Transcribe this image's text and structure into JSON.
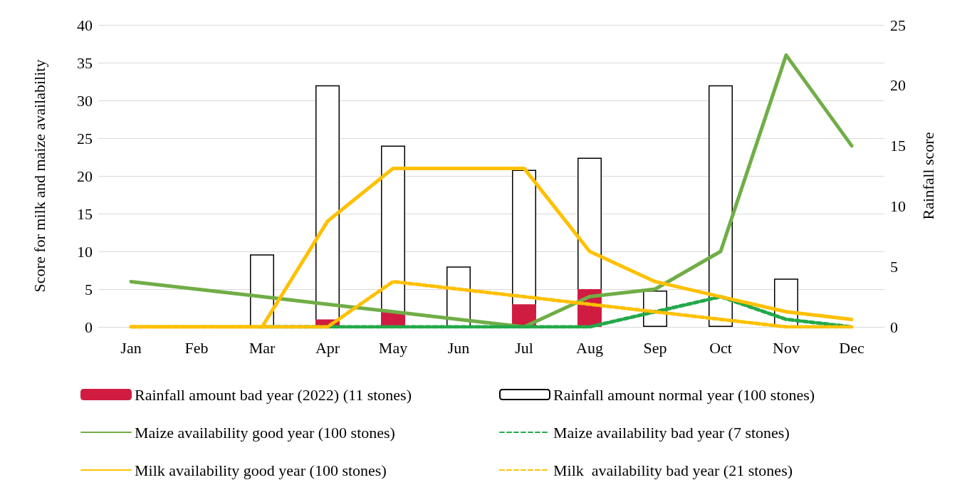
{
  "chart_data": {
    "type": "bar",
    "categories": [
      "Jan",
      "Feb",
      "Mar",
      "Apr",
      "May",
      "Jun",
      "Jul",
      "Aug",
      "Sep",
      "Oct",
      "Nov",
      "Dec"
    ],
    "ylabel": "Score for milk and maize availability",
    "y2label": "Rainfall score",
    "ylim": [
      0,
      40
    ],
    "yticks": [
      0,
      5,
      10,
      15,
      20,
      25,
      30,
      35,
      40
    ],
    "y2lim": [
      0,
      25
    ],
    "y2ticks": [
      0,
      5,
      10,
      15,
      20,
      25
    ],
    "grid": "y",
    "legend": "bottom",
    "series": [
      {
        "name": "Rainfall amount bad year (2022) (11 stones)",
        "color": "#d01c41",
        "values": [
          null,
          null,
          null,
          1,
          2,
          null,
          3,
          5,
          null,
          null,
          null,
          null
        ]
      },
      {
        "name": "Rainfall amount normal year (100 stones)",
        "axis": "y2",
        "color": "#ffffff",
        "values": [
          null,
          null,
          6,
          20,
          15,
          5,
          13,
          14,
          3,
          20,
          4,
          null
        ]
      },
      {
        "name": "Maize availability good year (100 stones)",
        "type": "line",
        "color": "#70ad47",
        "line_style": "solid",
        "values": [
          6,
          5,
          4,
          3,
          2,
          1,
          0,
          4,
          5,
          10,
          36,
          24
        ]
      },
      {
        "name": "Maize availability bad year (7 stones)",
        "type": "line",
        "color": "#23a94a",
        "line_style": "dashed",
        "values": [
          null,
          null,
          0,
          0,
          0,
          0,
          0,
          0,
          2,
          4,
          1,
          0
        ]
      },
      {
        "name": "Milk availability good year (100 stones)",
        "type": "line",
        "color": "#ffc000",
        "line_style": "solid",
        "values": [
          0,
          0,
          0,
          14,
          21,
          21,
          21,
          10,
          6,
          4,
          2,
          1
        ]
      },
      {
        "name": "Milk  availability bad year (21 stones)",
        "type": "line",
        "color": "#ffc000",
        "line_style": "dashed",
        "values": [
          0,
          0,
          0,
          0,
          6,
          5,
          4,
          3,
          2,
          1,
          0,
          0
        ]
      }
    ]
  }
}
